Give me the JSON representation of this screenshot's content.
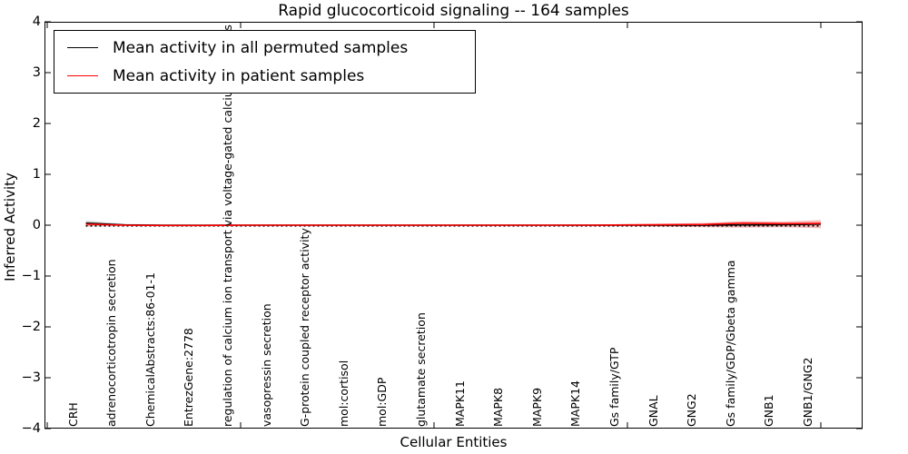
{
  "chart_data": {
    "type": "line",
    "title": "Rapid glucocorticoid signaling -- 164 samples",
    "xlabel": "Cellular Entities",
    "ylabel": "Inferred Activity",
    "ylim": [
      -4,
      4
    ],
    "yticks": [
      4,
      3,
      2,
      1,
      0,
      -1,
      -2,
      -3,
      -4
    ],
    "yticklabels": [
      "4",
      "3",
      "2",
      "1",
      "0",
      "−1",
      "−2",
      "−3",
      "−4"
    ],
    "grid": false,
    "legend_position": "upper-left",
    "zero_line": {
      "style": "dotted",
      "color": "#000000",
      "y": 0
    },
    "categories": [
      "CRH",
      "adrenocorticotropin secretion",
      "ChemicalAbstracts:86-01-1",
      "EntrezGene:2778",
      "regulation of calcium ion transport via voltage-gated calcium channels",
      "vasopressin secretion",
      "G-protein coupled receptor activity",
      "mol:cortisol",
      "mol:GDP",
      "glutamate secretion",
      "MAPK11",
      "MAPK8",
      "MAPK9",
      "MAPK14",
      "Gs family/GTP",
      "GNAL",
      "GNG2",
      "Gs family/GDP/Gbeta gamma",
      "GNB1",
      "GNB1/GNG2"
    ],
    "series": [
      {
        "name": "Mean activity in all permuted samples",
        "color": "#000000",
        "band_color": "#cccccc",
        "values": [
          0.04,
          0.005,
          0.0,
          0.0,
          0.0,
          0.0,
          0.0,
          0.0,
          0.0,
          0.0,
          0.0,
          0.0,
          0.0,
          0.0,
          0.0,
          0.0,
          0.0,
          0.005,
          0.01,
          0.02
        ],
        "band_upper": [
          0.09,
          0.025,
          0.012,
          0.01,
          0.01,
          0.01,
          0.01,
          0.01,
          0.01,
          0.01,
          0.01,
          0.01,
          0.01,
          0.01,
          0.01,
          0.012,
          0.02,
          0.03,
          0.03,
          0.05
        ],
        "band_lower": [
          -0.03,
          -0.015,
          -0.01,
          -0.01,
          -0.01,
          -0.01,
          -0.01,
          -0.01,
          -0.01,
          -0.01,
          -0.01,
          -0.01,
          -0.01,
          -0.01,
          -0.01,
          -0.01,
          -0.015,
          -0.02,
          -0.02,
          -0.03
        ]
      },
      {
        "name": "Mean activity in patient samples",
        "color": "#ff0000",
        "band_color": "#f5b4b4",
        "values": [
          0.02,
          0.0,
          -0.005,
          -0.005,
          0.0,
          0.0,
          0.0,
          0.0,
          0.0,
          0.0,
          0.0,
          0.0,
          0.0,
          0.0,
          0.005,
          0.01,
          0.015,
          0.04,
          0.03,
          0.035
        ],
        "band_upper": [
          0.04,
          0.012,
          0.01,
          0.01,
          0.01,
          0.01,
          0.01,
          0.01,
          0.01,
          0.01,
          0.01,
          0.01,
          0.01,
          0.015,
          0.02,
          0.03,
          0.045,
          0.08,
          0.07,
          0.1
        ],
        "band_lower": [
          -0.012,
          -0.01,
          -0.01,
          -0.01,
          -0.01,
          -0.01,
          -0.01,
          -0.01,
          -0.01,
          -0.01,
          -0.01,
          -0.01,
          -0.01,
          -0.015,
          -0.02,
          -0.03,
          -0.04,
          -0.05,
          -0.04,
          -0.06
        ]
      }
    ]
  }
}
